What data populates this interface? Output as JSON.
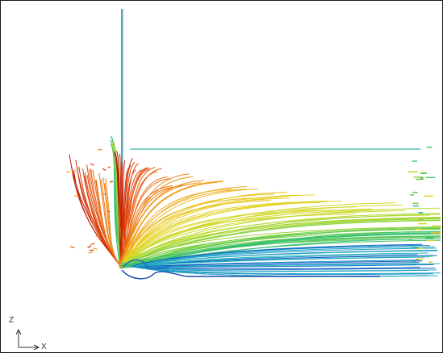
{
  "axis_triad": {
    "vertical_label": "Z",
    "horizontal_label": "X"
  },
  "colors": {
    "frame": "#1a1a1a",
    "background": "#ffffff",
    "colormap": [
      "#7a1010",
      "#cc2200",
      "#e85a10",
      "#f0a020",
      "#e8d020",
      "#c8dc30",
      "#7ed040",
      "#30c070",
      "#20b0c0",
      "#1880d0",
      "#1040b0"
    ]
  }
}
